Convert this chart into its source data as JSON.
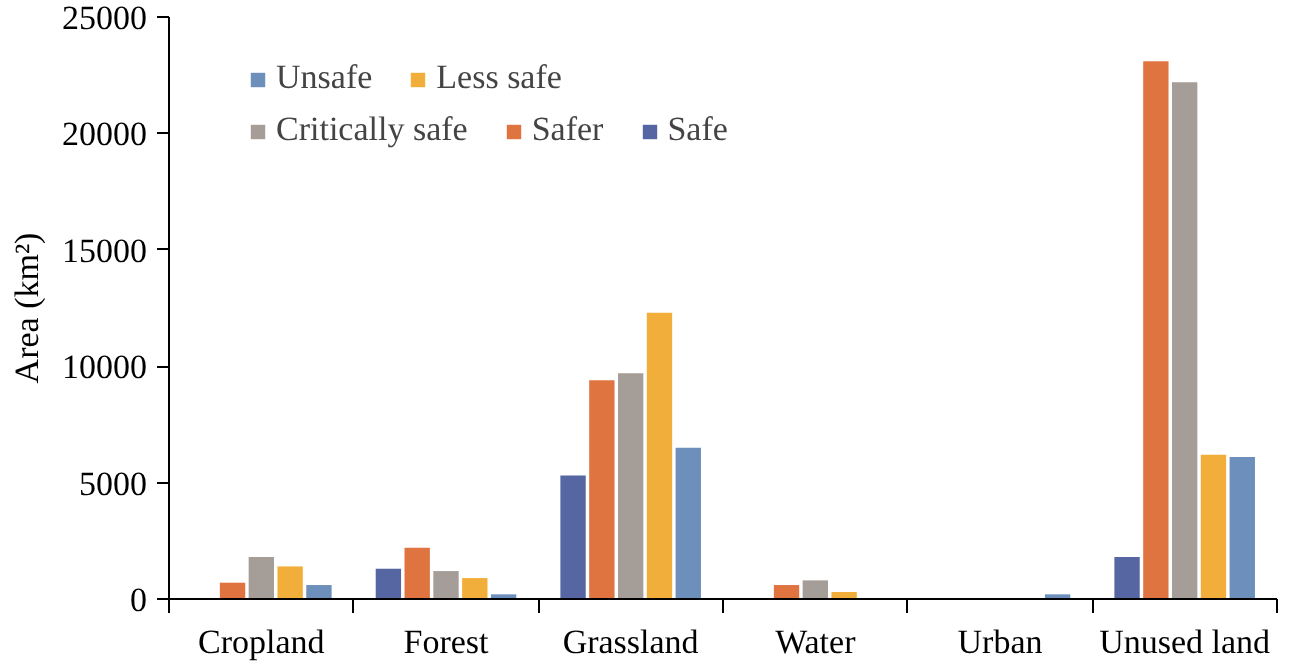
{
  "chart_data": {
    "type": "bar",
    "ylabel": "Area (km²)",
    "categories": [
      "Cropland",
      "Forest",
      "Grassland",
      "Water",
      "Urban",
      "Unused land"
    ],
    "series": [
      {
        "name": "Safe",
        "color": "#5566a3",
        "values": [
          0,
          1300,
          5300,
          0,
          0,
          1800
        ]
      },
      {
        "name": "Safer",
        "color": "#e07441",
        "values": [
          700,
          2200,
          9400,
          600,
          0,
          23100
        ]
      },
      {
        "name": "Critically safe",
        "color": "#a59d98",
        "values": [
          1800,
          1200,
          9700,
          800,
          0,
          22200
        ]
      },
      {
        "name": "Less safe",
        "color": "#f2ae3a",
        "values": [
          1400,
          900,
          12300,
          300,
          0,
          6200
        ]
      },
      {
        "name": "Unsafe",
        "color": "#6d8fbb",
        "values": [
          600,
          200,
          6500,
          0,
          200,
          6100
        ]
      }
    ],
    "ylim": [
      0,
      25000
    ],
    "yticks": [
      0,
      5000,
      10000,
      15000,
      20000,
      25000
    ],
    "grid": false,
    "legend": "top left"
  }
}
